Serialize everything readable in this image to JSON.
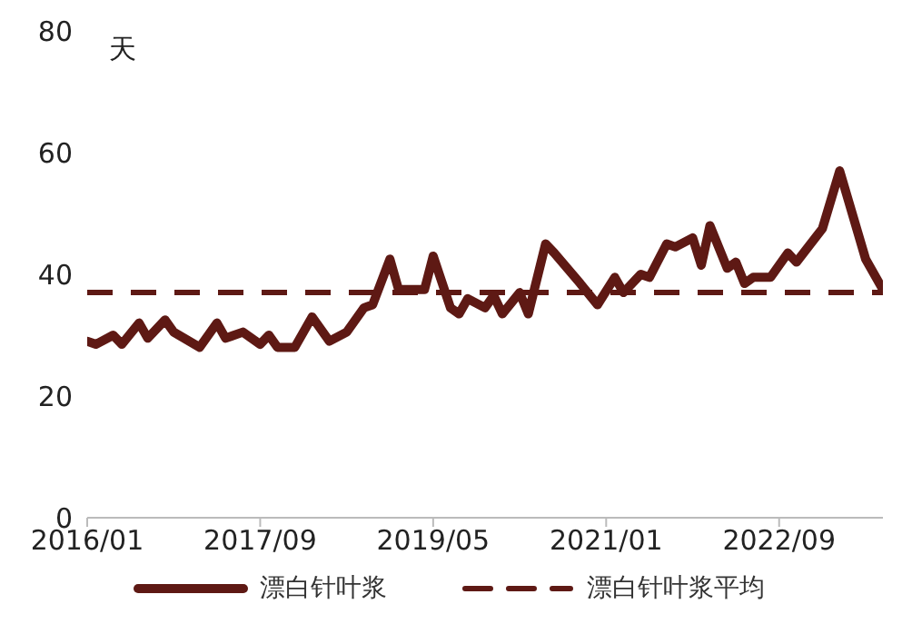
{
  "chart_data": {
    "type": "line",
    "ylabel": "天",
    "series": [
      {
        "name": "漂白针叶浆",
        "color": "#5e1914",
        "x": [
          "2016-01",
          "2016-02",
          "2016-04",
          "2016-05",
          "2016-07",
          "2016-08",
          "2016-10",
          "2016-11",
          "2017-02",
          "2017-04",
          "2017-05",
          "2017-07",
          "2017-09",
          "2017-10",
          "2017-11",
          "2018-01",
          "2018-03",
          "2018-05",
          "2018-07",
          "2018-09",
          "2018-10",
          "2018-12",
          "2019-01",
          "2019-04",
          "2019-05",
          "2019-07",
          "2019-08",
          "2019-09",
          "2019-11",
          "2019-12",
          "2020-01",
          "2020-03",
          "2020-04",
          "2020-06",
          "2020-07",
          "2020-10",
          "2020-12",
          "2021-02",
          "2021-03",
          "2021-05",
          "2021-06",
          "2021-08",
          "2021-09",
          "2021-11",
          "2021-12",
          "2022-01",
          "2022-03",
          "2022-04",
          "2022-05",
          "2022-06",
          "2022-08",
          "2022-10",
          "2022-11",
          "2023-02",
          "2023-04",
          "2023-07",
          "2023-09"
        ],
        "values": [
          29,
          28.5,
          30,
          28.5,
          32,
          29.5,
          32.5,
          30.5,
          28,
          32,
          29.5,
          30.5,
          28.5,
          30,
          28,
          28,
          33,
          29,
          30.5,
          34.5,
          35,
          42.5,
          37.5,
          37.5,
          43,
          34.5,
          33.5,
          36,
          34.5,
          36.5,
          33.5,
          37,
          33.5,
          45,
          43.5,
          38.5,
          35,
          39.5,
          37,
          40,
          39.5,
          45,
          44.5,
          46,
          41.5,
          48,
          41,
          42,
          38.5,
          39.5,
          39.5,
          43.5,
          42,
          47.5,
          57,
          42.5,
          37.5
        ]
      },
      {
        "name": "漂白针叶浆平均",
        "color": "#5e1914",
        "line_style": "dashed",
        "x": [
          "2016-01",
          "2023-09"
        ],
        "values": [
          37,
          37
        ]
      }
    ],
    "xlim": [
      "2016-01",
      "2023-09"
    ],
    "xticks": [
      {
        "value": "2016-01",
        "label": "2016/01"
      },
      {
        "value": "2017-09",
        "label": "2017/09"
      },
      {
        "value": "2019-05",
        "label": "2019/05"
      },
      {
        "value": "2021-01",
        "label": "2021/01"
      },
      {
        "value": "2022-09",
        "label": "2022/09"
      }
    ],
    "ylim": [
      0,
      80
    ],
    "yticks": [
      0,
      20,
      40,
      60,
      80
    ],
    "grid": false,
    "legend": "bottom",
    "marker": "none",
    "line_style": "solid"
  }
}
